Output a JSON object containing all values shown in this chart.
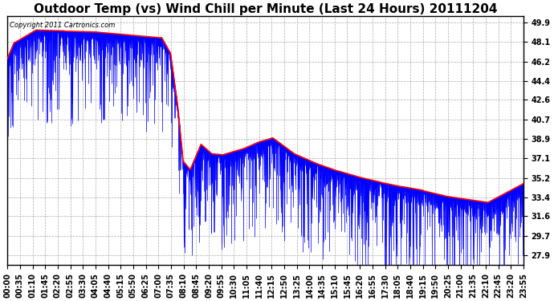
{
  "title": "Outdoor Temp (vs) Wind Chill per Minute (Last 24 Hours) 20111204",
  "copyright_text": "Copyright 2011 Cartronics.com",
  "yticks": [
    27.9,
    29.7,
    31.6,
    33.4,
    35.2,
    37.1,
    38.9,
    40.7,
    42.6,
    44.4,
    46.2,
    48.1,
    49.9
  ],
  "ymin": 27.0,
  "ymax": 50.5,
  "background_color": "#ffffff",
  "plot_bg_color": "#ffffff",
  "grid_color": "#aaaaaa",
  "blue_color": "#0000ff",
  "red_color": "#ff0000",
  "title_fontsize": 11,
  "tick_fontsize": 7,
  "xtick_labels": [
    "00:00",
    "00:35",
    "01:10",
    "01:45",
    "02:20",
    "02:55",
    "03:30",
    "04:05",
    "04:40",
    "05:15",
    "05:50",
    "06:25",
    "07:00",
    "07:35",
    "08:10",
    "08:45",
    "09:20",
    "09:55",
    "10:30",
    "11:05",
    "11:40",
    "12:15",
    "12:50",
    "13:25",
    "14:00",
    "14:35",
    "15:10",
    "15:45",
    "16:20",
    "16:55",
    "17:30",
    "18:05",
    "18:40",
    "19:15",
    "19:50",
    "20:25",
    "21:00",
    "21:35",
    "22:10",
    "22:45",
    "23:20",
    "23:55"
  ]
}
